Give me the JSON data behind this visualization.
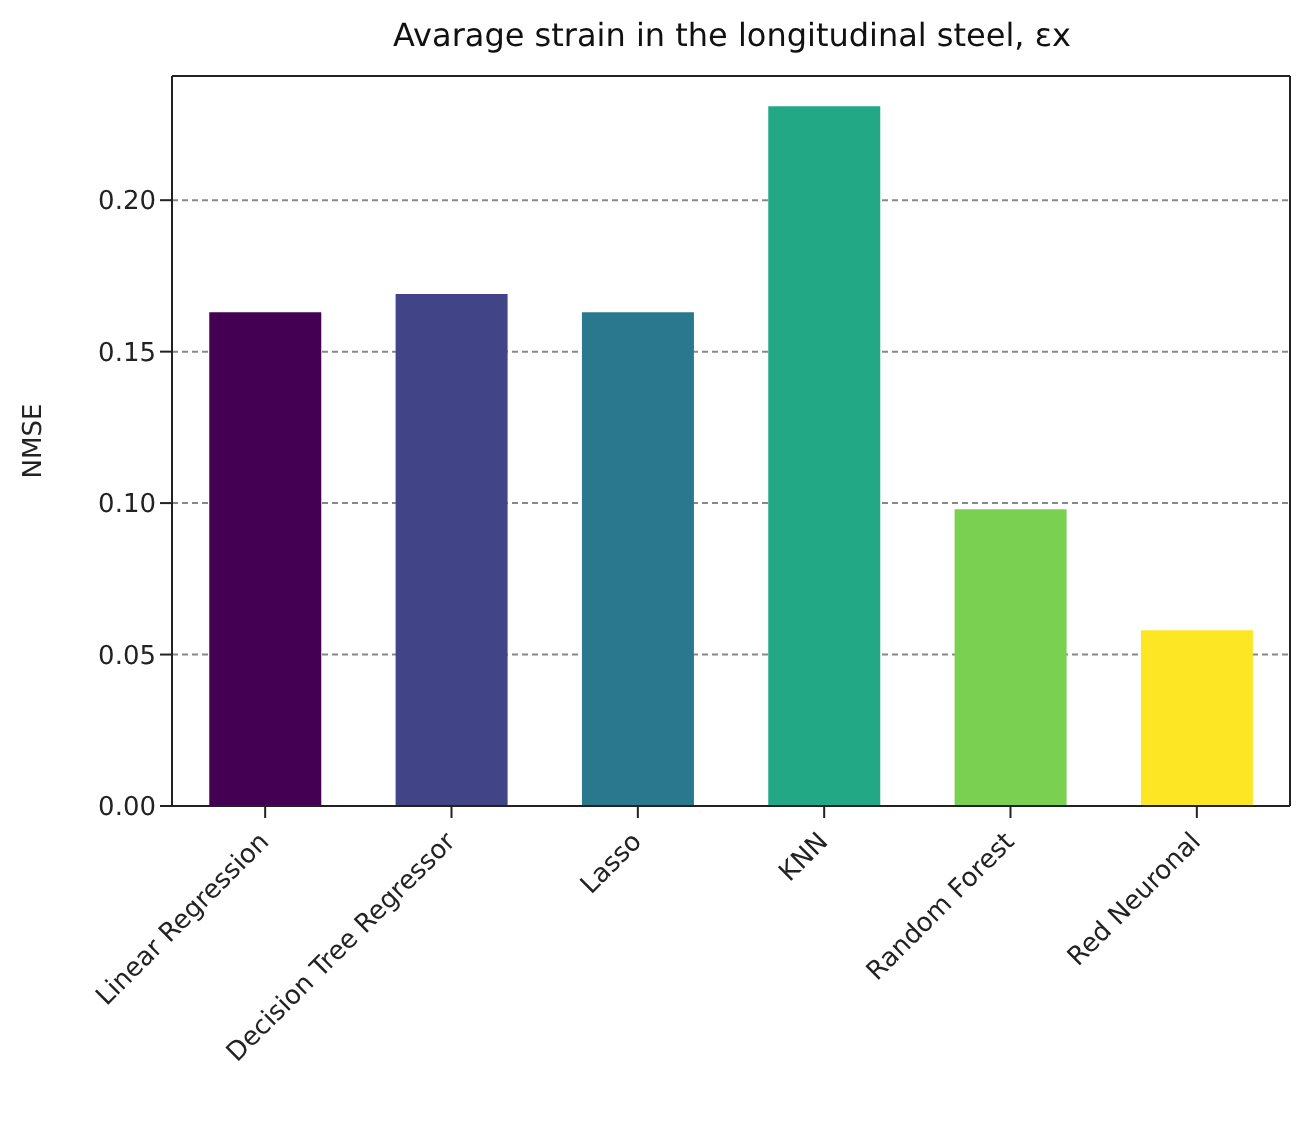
{
  "chart_data": {
    "type": "bar",
    "title": "Avarage strain in the longitudinal steel, εx",
    "ylabel": "NMSE",
    "categories": [
      "Linear Regression",
      "Decision Tree Regressor",
      "Lasso",
      "KNN",
      "Random Forest",
      "Red Neuronal"
    ],
    "values": [
      0.163,
      0.169,
      0.163,
      0.231,
      0.098,
      0.058
    ],
    "colors": [
      "#440154",
      "#414487",
      "#2a788e",
      "#22a884",
      "#7ad151",
      "#fde725"
    ],
    "ylim": [
      0,
      0.241
    ],
    "yticks": [
      {
        "value": 0,
        "label": "0.00"
      },
      {
        "value": 0.05,
        "label": "0.05"
      },
      {
        "value": 0.1,
        "label": "0.10"
      },
      {
        "value": 0.15,
        "label": "0.15"
      },
      {
        "value": 0.2,
        "label": "0.20"
      }
    ],
    "grid": "y"
  }
}
